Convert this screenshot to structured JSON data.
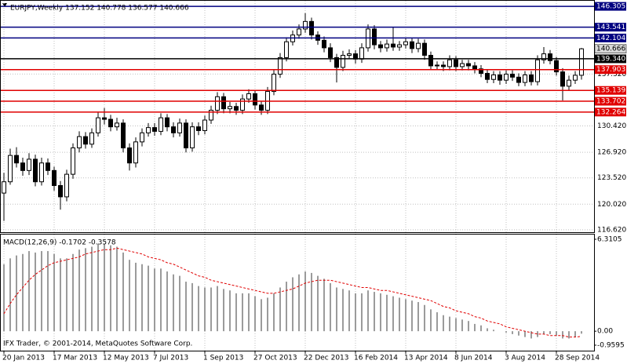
{
  "chart_data": [
    {
      "type": "candlestick",
      "title": "EURJPY,Weekly 137.152 140.778 136.577 140.666",
      "categories": [
        "20 Jan 2013",
        null,
        null,
        null,
        null,
        null,
        null,
        null,
        "17 Mar 2013",
        null,
        null,
        null,
        null,
        null,
        null,
        null,
        "12 May 2013",
        null,
        null,
        null,
        null,
        null,
        null,
        null,
        "7 Jul 2013",
        null,
        null,
        null,
        null,
        null,
        null,
        null,
        "1 Sep 2013",
        null,
        null,
        null,
        null,
        null,
        null,
        null,
        "27 Oct 2013",
        null,
        null,
        null,
        null,
        null,
        null,
        null,
        "22 Dec 2013",
        null,
        null,
        null,
        null,
        null,
        null,
        null,
        "16 Feb 2014",
        null,
        null,
        null,
        null,
        null,
        null,
        null,
        "13 Apr 2014",
        null,
        null,
        null,
        null,
        null,
        null,
        null,
        "8 Jun 2014",
        null,
        null,
        null,
        null,
        null,
        null,
        null,
        "3 Aug 2014",
        null,
        null,
        null,
        null,
        null,
        null,
        null,
        "28 Sep 2014",
        null,
        null,
        null,
        null
      ],
      "open": [
        121.5,
        123.0,
        126.5,
        125.5,
        124.5,
        126.0,
        123.0,
        125.5,
        124.5,
        122.5,
        121.0,
        124.0,
        127.5,
        129.0,
        128.0,
        129.5,
        131.5,
        131.3,
        130.3,
        130.8,
        127.5,
        125.5,
        128.3,
        129.5,
        130.2,
        129.7,
        131.5,
        130.3,
        129.5,
        130.8,
        127.5,
        130.3,
        129.8,
        131.2,
        132.5,
        134.3,
        132.7,
        133.0,
        132.5,
        134.0,
        134.7,
        133.2,
        132.5,
        135.0,
        137.3,
        139.5,
        141.6,
        142.5,
        143.3,
        144.3,
        142.5,
        141.8,
        140.8,
        139.5,
        138.2,
        139.8,
        140.0,
        139.3,
        140.8,
        143.3,
        141.2,
        140.8,
        141.3,
        140.9,
        141.2,
        141.6,
        140.7,
        141.4,
        139.8,
        138.4,
        138.5,
        138.3,
        139.2,
        138.3,
        138.7,
        138.4,
        138.0,
        137.4,
        136.6,
        137.2,
        136.5,
        137.3,
        136.9,
        136.2,
        137.2,
        136.3,
        139.2,
        140.0,
        139.1,
        137.6,
        135.7,
        136.5,
        137.152
      ],
      "high": [
        124.2,
        127.4,
        127.6,
        126.2,
        126.8,
        126.6,
        126.2,
        126.1,
        125.0,
        123.1,
        124.6,
        128.1,
        129.7,
        129.6,
        130.1,
        132.2,
        132.8,
        131.9,
        131.5,
        131.3,
        128.1,
        128.9,
        130.1,
        130.8,
        130.8,
        132.1,
        132.0,
        130.9,
        131.4,
        131.3,
        130.9,
        130.9,
        131.8,
        133.1,
        134.9,
        134.8,
        133.6,
        133.5,
        134.6,
        135.3,
        135.2,
        133.7,
        135.6,
        137.9,
        140.1,
        142.2,
        143.1,
        143.9,
        145.4,
        144.8,
        143.0,
        142.3,
        141.4,
        140.0,
        140.4,
        140.6,
        140.5,
        141.4,
        143.9,
        143.8,
        141.7,
        141.9,
        143.5,
        141.7,
        142.1,
        142.1,
        142.0,
        141.9,
        140.3,
        139.0,
        139.0,
        139.8,
        139.7,
        139.2,
        139.2,
        138.9,
        138.5,
        137.9,
        137.7,
        137.7,
        137.8,
        137.8,
        137.4,
        137.7,
        137.7,
        139.8,
        140.9,
        140.5,
        139.6,
        138.1,
        137.1,
        137.7,
        140.778
      ],
      "low": [
        117.8,
        122.6,
        124.9,
        123.8,
        123.9,
        122.4,
        122.5,
        123.9,
        121.8,
        119.3,
        120.4,
        123.4,
        126.9,
        127.4,
        127.5,
        129.0,
        130.6,
        129.7,
        129.8,
        126.9,
        124.5,
        124.9,
        127.7,
        129.0,
        129.1,
        129.2,
        129.7,
        128.9,
        129.0,
        126.9,
        127.0,
        129.2,
        129.3,
        130.7,
        132.0,
        132.1,
        132.1,
        131.9,
        132.0,
        133.5,
        132.6,
        131.9,
        132.0,
        134.5,
        136.8,
        139.0,
        141.1,
        142.0,
        142.8,
        141.9,
        141.2,
        140.2,
        138.9,
        136.2,
        137.7,
        139.3,
        138.7,
        138.8,
        140.3,
        140.6,
        140.2,
        140.3,
        140.4,
        140.4,
        140.7,
        140.1,
        140.2,
        139.2,
        137.9,
        137.9,
        137.7,
        137.8,
        137.7,
        137.8,
        137.8,
        137.4,
        136.9,
        136.1,
        136.1,
        135.9,
        136.0,
        136.4,
        135.7,
        135.7,
        135.8,
        135.8,
        138.7,
        138.6,
        137.1,
        133.8,
        135.2,
        136.0,
        136.577
      ],
      "close": [
        123.0,
        126.5,
        125.5,
        124.5,
        126.0,
        123.0,
        125.5,
        124.5,
        122.5,
        121.0,
        124.0,
        127.5,
        129.0,
        128.0,
        129.5,
        131.5,
        131.3,
        130.3,
        130.8,
        127.5,
        125.5,
        128.3,
        129.5,
        130.2,
        129.7,
        131.5,
        130.3,
        129.5,
        130.8,
        127.5,
        130.3,
        129.8,
        131.2,
        132.5,
        134.3,
        132.7,
        133.0,
        132.5,
        134.0,
        134.7,
        133.2,
        132.5,
        135.0,
        137.3,
        139.5,
        141.6,
        142.5,
        143.3,
        144.3,
        142.5,
        141.8,
        140.8,
        139.5,
        138.2,
        139.8,
        140.0,
        139.3,
        140.8,
        143.3,
        141.2,
        140.8,
        141.3,
        140.9,
        141.2,
        141.6,
        140.7,
        141.4,
        139.8,
        138.4,
        138.5,
        138.3,
        139.2,
        138.3,
        138.7,
        138.4,
        138.0,
        137.4,
        136.6,
        137.2,
        136.5,
        137.3,
        136.9,
        136.2,
        137.2,
        136.3,
        139.2,
        140.0,
        139.1,
        137.6,
        135.7,
        136.5,
        137.15,
        140.666
      ],
      "up_color": "#ffffff",
      "down_color": "#000000",
      "ylim": [
        116.3,
        147.15
      ],
      "yticks": [
        {
          "value": 116.62,
          "label": "116.620"
        },
        {
          "value": 120.02,
          "label": "120.020"
        },
        {
          "value": 123.52,
          "label": "123.520"
        },
        {
          "value": 126.92,
          "label": "126.920"
        },
        {
          "value": 130.42,
          "label": "130.420"
        },
        {
          "value": 137.32,
          "label": "137.320"
        }
      ],
      "grid": true,
      "levels": [
        {
          "value": 146.305,
          "color": "#000080"
        },
        {
          "value": 143.541,
          "color": "#000080"
        },
        {
          "value": 142.104,
          "color": "#000080"
        },
        {
          "value": 139.34,
          "label": "139.340",
          "color": "#000000"
        },
        {
          "value": 137.903,
          "color": "#e00000"
        },
        {
          "value": 135.139,
          "color": "#e00000"
        },
        {
          "value": 133.702,
          "color": "#e00000"
        },
        {
          "value": 132.264,
          "color": "#e00000"
        }
      ],
      "current_price": 140.666,
      "current_price_color": "#d8d8d8"
    },
    {
      "type": "macd",
      "title": "MACD(12,26,9) -0.1702 -0.3578",
      "histogram": [
        4.6,
        5.0,
        5.2,
        5.3,
        5.5,
        5.4,
        5.5,
        5.5,
        5.3,
        5.0,
        5.0,
        5.3,
        5.6,
        5.7,
        5.8,
        6.0,
        6.0,
        5.9,
        5.8,
        5.4,
        4.9,
        4.7,
        4.6,
        4.5,
        4.3,
        4.3,
        4.1,
        3.9,
        3.8,
        3.4,
        3.3,
        3.1,
        3.0,
        3.0,
        3.1,
        2.9,
        2.8,
        2.6,
        2.6,
        2.6,
        2.4,
        2.2,
        2.3,
        2.6,
        3.0,
        3.4,
        3.7,
        3.9,
        4.1,
        4.0,
        3.8,
        3.6,
        3.3,
        3.0,
        2.9,
        2.8,
        2.6,
        2.6,
        2.8,
        2.7,
        2.6,
        2.5,
        2.4,
        2.3,
        2.2,
        2.1,
        2.0,
        1.8,
        1.5,
        1.3,
        1.1,
        1.0,
        0.9,
        0.8,
        0.7,
        0.5,
        0.4,
        0.2,
        0.1,
        0.0,
        -0.1,
        -0.2,
        -0.3,
        -0.4,
        -0.5,
        -0.4,
        -0.2,
        -0.2,
        -0.3,
        -0.5,
        -0.5,
        -0.4,
        -0.1702
      ],
      "signal": [
        1.2,
        1.9,
        2.5,
        3.0,
        3.5,
        3.9,
        4.2,
        4.5,
        4.7,
        4.8,
        4.9,
        5.0,
        5.1,
        5.3,
        5.4,
        5.5,
        5.6,
        5.6,
        5.7,
        5.6,
        5.5,
        5.4,
        5.3,
        5.1,
        5.0,
        4.9,
        4.7,
        4.6,
        4.4,
        4.2,
        4.0,
        3.8,
        3.7,
        3.5,
        3.4,
        3.3,
        3.2,
        3.1,
        3.0,
        2.9,
        2.8,
        2.7,
        2.6,
        2.6,
        2.7,
        2.8,
        2.9,
        3.1,
        3.3,
        3.4,
        3.5,
        3.5,
        3.5,
        3.4,
        3.3,
        3.2,
        3.1,
        3.0,
        3.0,
        2.9,
        2.8,
        2.8,
        2.7,
        2.6,
        2.5,
        2.4,
        2.3,
        2.2,
        2.1,
        1.9,
        1.7,
        1.6,
        1.4,
        1.3,
        1.2,
        1.0,
        0.9,
        0.7,
        0.6,
        0.5,
        0.3,
        0.2,
        0.1,
        0.0,
        -0.1,
        -0.2,
        -0.2,
        -0.3,
        -0.3,
        -0.3,
        -0.4,
        -0.4,
        -0.3578
      ],
      "histogram_color": "#707070",
      "signal_color": "#e00000",
      "ylim": [
        -0.9595,
        6.3105
      ],
      "yticks": [
        6.3105,
        {
          "value": 0,
          "label": "0.00"
        },
        -0.9595
      ],
      "annotation": "IFX Trader, © 2001-2014, MetaQuotes Software Corp."
    }
  ]
}
